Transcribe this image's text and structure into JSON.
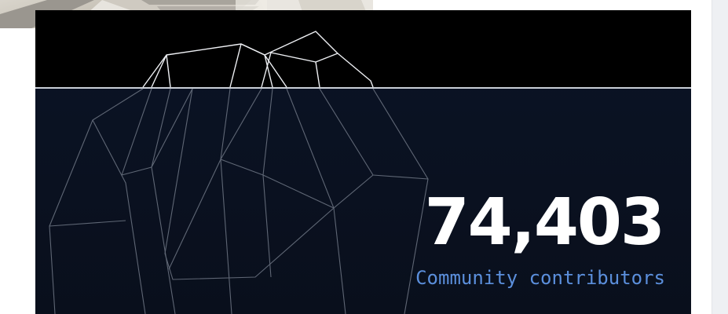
{
  "stat": {
    "value": "74,403",
    "label": "Community contributors"
  },
  "colors": {
    "card_background": "#0a1120",
    "sky": "#000000",
    "stat_value": "#ffffff",
    "stat_label": "#5b8fdc",
    "iceberg_lines": "#e6e9ee"
  },
  "icons": {
    "illustration": "iceberg-illustration",
    "photo": "laptop-photo"
  }
}
